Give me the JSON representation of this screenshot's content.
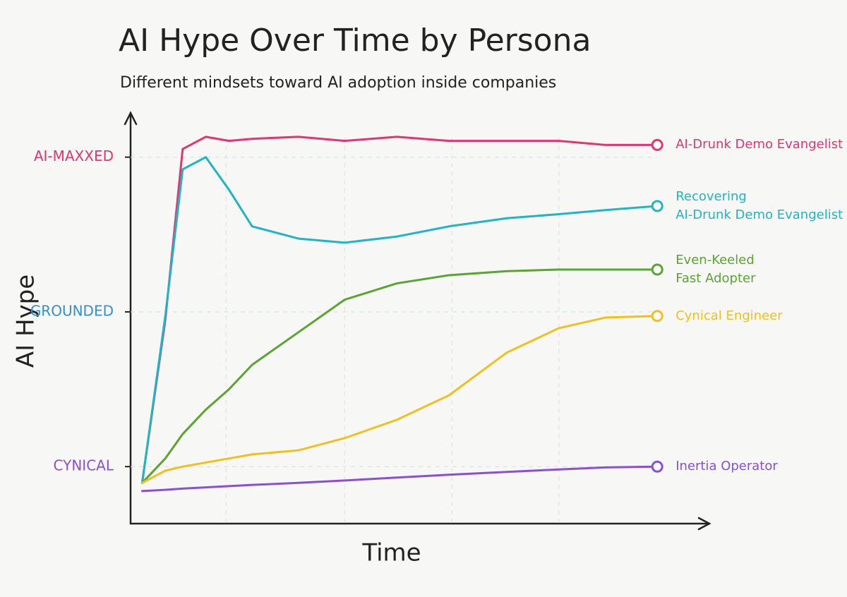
{
  "chart_data": {
    "type": "line",
    "title": "AI Hype Over Time by Persona",
    "subtitle": "Different mindsets toward AI adoption inside companies",
    "x_label": "Time",
    "y_label": "AI Hype",
    "xlim": [
      0,
      100
    ],
    "ylim": [
      0,
      100
    ],
    "xticks": [
      16.5,
      37,
      55.5,
      74
    ],
    "yticks": [
      {
        "value": 14,
        "label": "CYNICAL",
        "color": "#8a4fd6"
      },
      {
        "value": 52,
        "label": "GROUNDED",
        "color": "#2f8fd8"
      },
      {
        "value": 90,
        "label": "AI-MAXXED",
        "color": "#e8336e"
      }
    ],
    "grid": true,
    "x": [
      2,
      6,
      9,
      13,
      17,
      21,
      29,
      37,
      46,
      55,
      65,
      74,
      82,
      91
    ],
    "series": [
      {
        "name": "AI-Drunk Demo Evangelist",
        "color": "#e8336e",
        "values": [
          10,
          50,
          92,
          95,
          94,
          94.5,
          95,
          94,
          95,
          94,
          94,
          94,
          93,
          93
        ]
      },
      {
        "name": "Recovering\nAI-Drunk Demo Evangelist",
        "color": "#1fb5c4",
        "values": [
          10,
          51,
          87,
          90,
          82,
          73,
          70,
          69,
          70.5,
          73,
          75,
          76,
          77,
          78
        ]
      },
      {
        "name": "Even-Keeled\nFast Adopter",
        "color": "#5aa532",
        "values": [
          10,
          16,
          22,
          28,
          33,
          39,
          47,
          55,
          59,
          61,
          62,
          62.4,
          62.4,
          62.4
        ]
      },
      {
        "name": "Cynical Engineer",
        "color": "#f2c01e",
        "values": [
          10,
          13,
          14,
          15,
          16,
          17,
          18,
          21,
          25.5,
          31.5,
          42,
          48,
          50.6,
          51
        ]
      },
      {
        "name": "Inertia Operator",
        "color": "#8a4fd6",
        "values": [
          8,
          8.3,
          8.6,
          8.9,
          9.2,
          9.5,
          10,
          10.6,
          11.3,
          12,
          12.7,
          13.3,
          13.8,
          14
        ]
      }
    ]
  }
}
